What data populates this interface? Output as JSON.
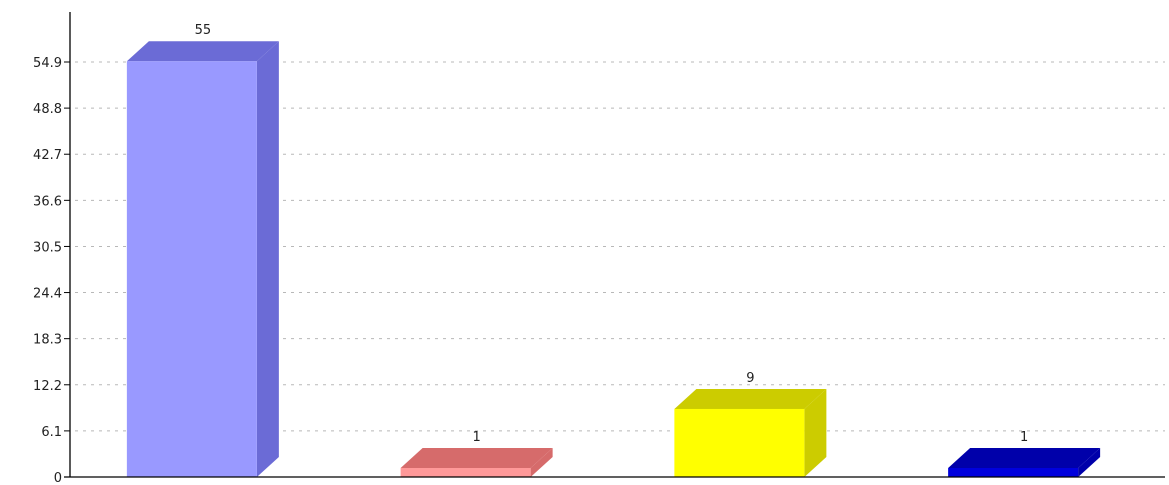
{
  "chart_data": {
    "type": "bar",
    "categories": [
      "",
      "",
      "",
      ""
    ],
    "values": [
      55,
      1,
      9,
      1
    ],
    "value_labels": [
      "55",
      "1",
      "9",
      "1"
    ],
    "y_ticks": [
      {
        "value": 0,
        "label": "0"
      },
      {
        "value": 6.1,
        "label": "6.1"
      },
      {
        "value": 12.2,
        "label": "12.2"
      },
      {
        "value": 18.3,
        "label": "18.3"
      },
      {
        "value": 24.4,
        "label": "24.4"
      },
      {
        "value": 30.5,
        "label": "30.5"
      },
      {
        "value": 36.6,
        "label": "36.6"
      },
      {
        "value": 42.7,
        "label": "42.7"
      },
      {
        "value": 48.8,
        "label": "48.8"
      },
      {
        "value": 54.9,
        "label": "54.9"
      }
    ],
    "ylim": [
      0,
      54.9
    ],
    "grid": true,
    "legend": "none",
    "bar_style": "3d",
    "colors": [
      {
        "front": "#9999ff",
        "side": "#6b6bd6",
        "top": "#6b6bd6"
      },
      {
        "front": "#ff9999",
        "side": "#d66b6b",
        "top": "#d66b6b"
      },
      {
        "front": "#ffff00",
        "side": "#cccc00",
        "top": "#cccc00"
      },
      {
        "front": "#0000dd",
        "side": "#0000aa",
        "top": "#0000aa"
      }
    ]
  }
}
